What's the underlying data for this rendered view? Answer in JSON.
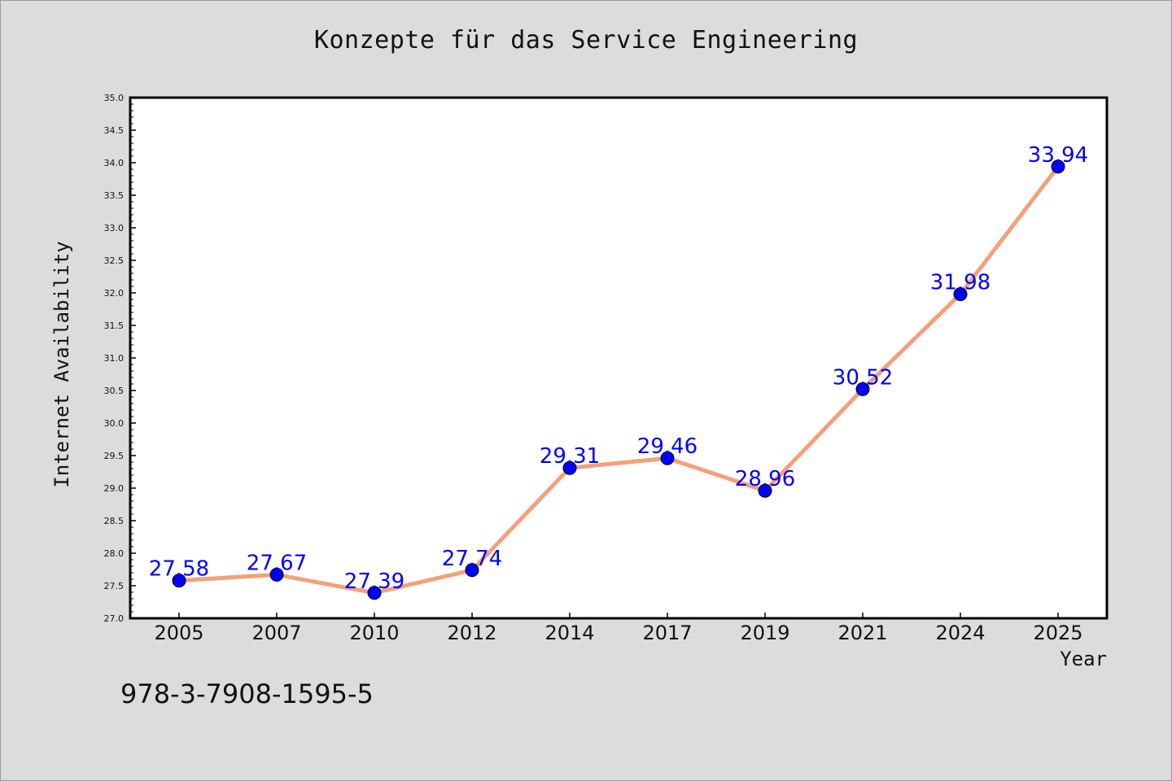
{
  "title": "Konzepte für das Service Engineering",
  "isbn": "978-3-7908-1595-5",
  "colors": {
    "background": "#dcdcdc",
    "plot_background": "#ffffff",
    "line": "#f4a07a",
    "marker": "#0000ff",
    "data_label": "#0000ff"
  },
  "chart_data": {
    "type": "line",
    "title": "Konzepte für das Service Engineering",
    "xlabel": "Year",
    "ylabel": "Internet Availability",
    "categories": [
      "2005",
      "2007",
      "2010",
      "2012",
      "2014",
      "2017",
      "2019",
      "2021",
      "2024",
      "2025"
    ],
    "series": [
      {
        "values": [
          27.58,
          27.67,
          27.39,
          27.74,
          29.31,
          29.46,
          28.96,
          30.52,
          31.98,
          33.94
        ]
      }
    ],
    "data_labels": [
      "27.58",
      "27.67",
      "27.39",
      "27.74",
      "29.31",
      "29.46",
      "28.96",
      "30.52",
      "31.98",
      "33.94"
    ],
    "ylim": [
      27.0,
      35.0
    ],
    "yticks": [
      "27.0",
      "27.5",
      "28.0",
      "28.5",
      "29.0",
      "29.5",
      "30.0",
      "30.5",
      "31.0",
      "31.5",
      "32.0",
      "32.5",
      "33.0",
      "33.5",
      "34.0",
      "34.5",
      "35.0"
    ],
    "grid": false,
    "legend": "none"
  }
}
